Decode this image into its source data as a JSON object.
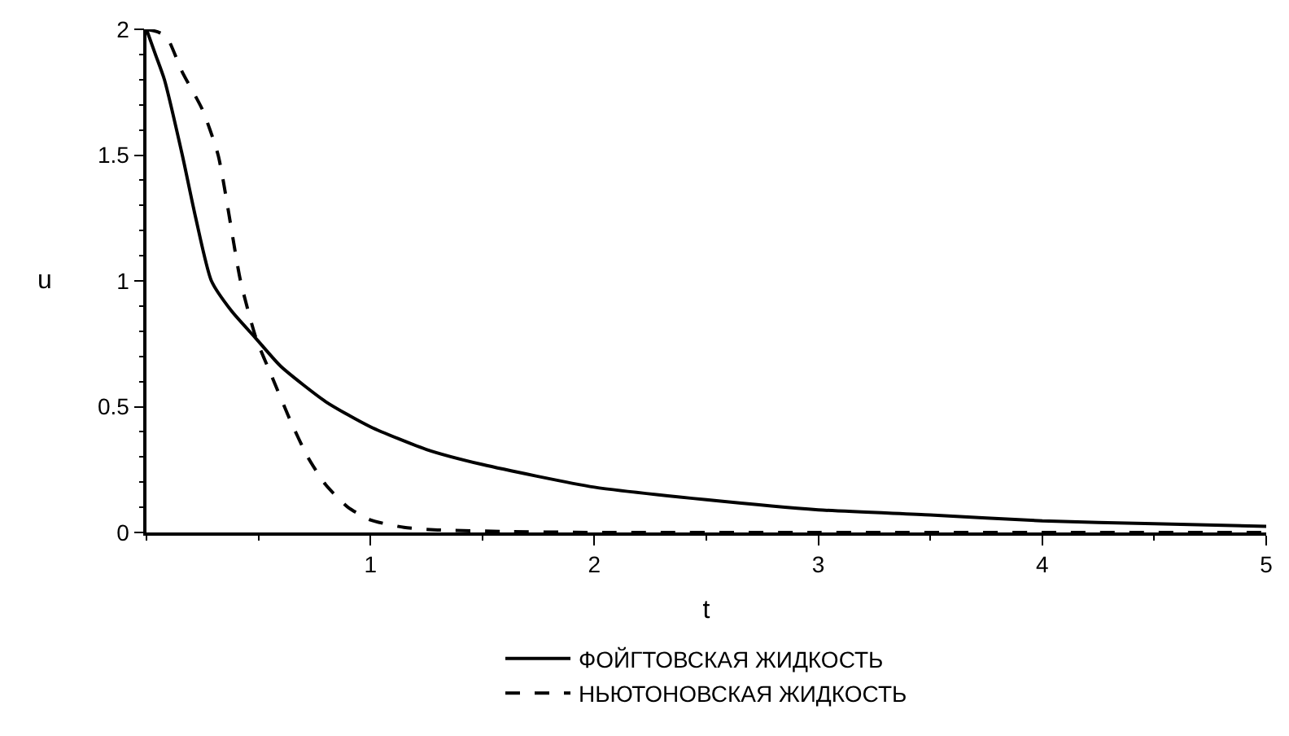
{
  "chart_data": {
    "type": "line",
    "xlabel": "t",
    "ylabel": "u",
    "xlim": [
      0,
      5
    ],
    "ylim": [
      0,
      2
    ],
    "xticks": [
      1,
      2,
      3,
      4,
      5
    ],
    "yticks": [
      0,
      0.5,
      1,
      1.5,
      2
    ],
    "grid": false,
    "legend": "bottom",
    "marker": "none",
    "series": [
      {
        "name": "ФОЙГТОВСКАЯ ЖИДКОСТЬ",
        "color": "#000000",
        "line_style": "solid",
        "x": [
          0,
          0.04,
          0.08,
          0.16,
          0.22,
          0.29,
          0.38,
          0.49,
          0.6,
          0.8,
          1,
          1.25,
          1.5,
          2,
          2.5,
          3,
          3.5,
          4,
          4.5,
          5
        ],
        "values": [
          2,
          1.9,
          1.8,
          1.5,
          1.25,
          1.0,
          0.88,
          0.77,
          0.66,
          0.52,
          0.42,
          0.33,
          0.27,
          0.18,
          0.13,
          0.09,
          0.07,
          0.046,
          0.035,
          0.024
        ]
      },
      {
        "name": "НЬЮТОНОВСКАЯ ЖИДКОСТЬ",
        "color": "#000000",
        "line_style": "dashed",
        "x": [
          0,
          0.05,
          0.09,
          0.16,
          0.25,
          0.32,
          0.42,
          0.49,
          0.56,
          0.64,
          0.72,
          0.8,
          0.9,
          1,
          1.15,
          1.3,
          1.6,
          2,
          3,
          4,
          5
        ],
        "values": [
          2,
          1.99,
          1.97,
          1.83,
          1.68,
          1.5,
          1.0,
          0.77,
          0.62,
          0.45,
          0.3,
          0.19,
          0.1,
          0.05,
          0.02,
          0.01,
          0.004,
          0,
          0,
          0,
          0
        ]
      }
    ]
  }
}
